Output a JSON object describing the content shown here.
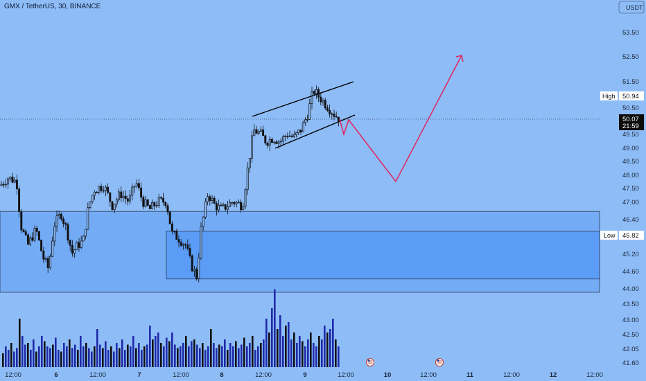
{
  "header": {
    "title": "GMX / TetherUS, 30, BINANCE"
  },
  "price_scale": {
    "currency_button": "USDT",
    "high_label": "High",
    "high_value": "50.94",
    "last_value": "50.07",
    "countdown": "21:59",
    "low_label": "Low",
    "low_value": "45.82"
  },
  "colors": {
    "background": "#8ebcf7",
    "zone_fill": "#5b9cf6",
    "candle": "#111111",
    "volume_bar": "#1f2aa8",
    "volume_bar_dark": "#111111",
    "projection": "#e0245e",
    "channel": "#000000"
  },
  "event_icons": [
    "us-flag-icon",
    "us-flag-icon"
  ],
  "chart_data": {
    "type": "candlestick",
    "title": "GMX / TetherUS, 30, BINANCE",
    "y_ticks": [
      "53.50",
      "52.50",
      "51.50",
      "50.50",
      "49.50",
      "49.00",
      "48.50",
      "48.00",
      "47.50",
      "47.00",
      "46.40",
      "45.20",
      "44.60",
      "44.00",
      "43.50",
      "43.00",
      "42.50",
      "42.05",
      "41.60"
    ],
    "x_ticks": [
      "12:00",
      "6",
      "12:00",
      "7",
      "12:00",
      "8",
      "12:00",
      "9",
      "12:00",
      "10",
      "12:00",
      "11",
      "12:00",
      "12",
      "12:00"
    ],
    "high": 50.94,
    "low": 45.82,
    "last": 50.07,
    "price_path": [
      [
        0,
        48.4
      ],
      [
        12,
        48.6
      ],
      [
        24,
        48.5
      ],
      [
        30,
        47.4
      ],
      [
        40,
        46.9
      ],
      [
        52,
        47.3
      ],
      [
        62,
        46.6
      ],
      [
        70,
        46.3
      ],
      [
        78,
        47.4
      ],
      [
        88,
        47.7
      ],
      [
        96,
        47.3
      ],
      [
        104,
        46.7
      ],
      [
        112,
        46.9
      ],
      [
        120,
        47.0
      ],
      [
        128,
        47.9
      ],
      [
        136,
        48.3
      ],
      [
        150,
        48.4
      ],
      [
        162,
        47.9
      ],
      [
        174,
        48.2
      ],
      [
        186,
        48.0
      ],
      [
        196,
        48.5
      ],
      [
        206,
        48.0
      ],
      [
        216,
        47.8
      ],
      [
        228,
        48.0
      ],
      [
        240,
        48.0
      ],
      [
        248,
        47.2
      ],
      [
        256,
        47.1
      ],
      [
        268,
        46.9
      ],
      [
        276,
        46.4
      ],
      [
        284,
        46.1
      ],
      [
        290,
        47.3
      ],
      [
        300,
        48.2
      ],
      [
        310,
        47.9
      ],
      [
        320,
        47.8
      ],
      [
        336,
        48.0
      ],
      [
        350,
        47.9
      ],
      [
        358,
        48.9
      ],
      [
        366,
        49.8
      ],
      [
        376,
        49.7
      ],
      [
        384,
        49.5
      ],
      [
        394,
        49.6
      ],
      [
        404,
        49.5
      ],
      [
        414,
        49.7
      ],
      [
        424,
        49.6
      ],
      [
        434,
        49.8
      ],
      [
        444,
        50.2
      ],
      [
        452,
        50.8
      ],
      [
        462,
        50.6
      ],
      [
        472,
        50.4
      ],
      [
        482,
        50.2
      ],
      [
        490,
        50.07
      ]
    ],
    "volume": [
      8,
      12,
      10,
      14,
      9,
      11,
      28,
      18,
      13,
      14,
      10,
      16,
      9,
      12,
      18,
      15,
      12,
      11,
      13,
      17,
      10,
      9,
      14,
      12,
      16,
      11,
      13,
      10,
      18,
      12,
      14,
      11,
      9,
      12,
      22,
      13,
      11,
      15,
      10,
      12,
      9,
      14,
      11,
      16,
      10,
      13,
      12,
      18,
      11,
      14,
      10,
      12,
      13,
      24,
      16,
      18,
      20,
      14,
      12,
      17,
      15,
      20,
      13,
      11,
      12,
      14,
      18,
      12,
      15,
      16,
      13,
      11,
      14,
      10,
      12,
      22,
      14,
      11,
      13,
      12,
      16,
      10,
      14,
      12,
      15,
      11,
      13,
      17,
      12,
      14,
      18,
      10,
      12,
      14,
      16,
      28,
      20,
      34,
      45,
      22,
      30,
      18,
      24,
      26,
      16,
      20,
      14,
      18,
      15,
      12,
      16,
      20,
      14,
      12,
      18,
      16,
      24,
      20,
      22,
      28,
      16,
      12,
      10
    ],
    "annotations": {
      "support_zone_outer": [
        45.82,
        47.75
      ],
      "support_zone_inner": [
        46.05,
        47.25
      ],
      "rising_channel": {
        "upper": [
          [
            49.9,
            51.55
          ]
        ],
        "lower": [
          [
            48.95,
            50.23
          ]
        ]
      },
      "projection_path": [
        50.23,
        49.55,
        50.1,
        47.78,
        52.45
      ],
      "dotted_last_price": 50.07
    }
  }
}
